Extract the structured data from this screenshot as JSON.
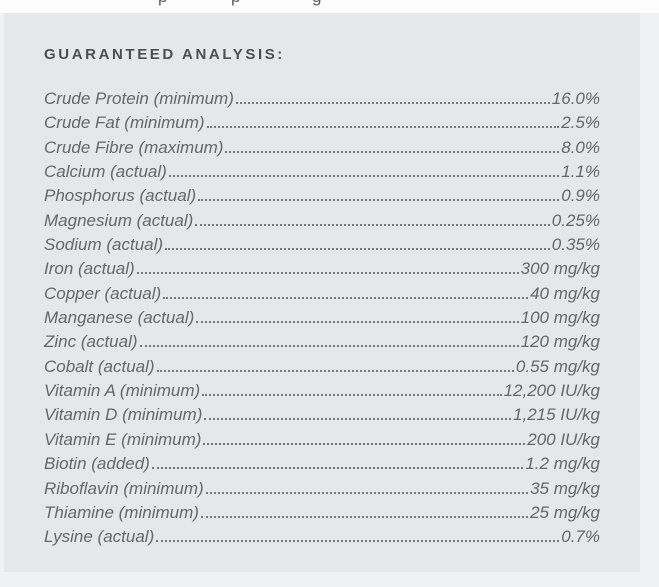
{
  "theme": {
    "page_bg": "#f0f1f2",
    "top_strip_bg": "#fdfdfe",
    "card_bg": "#e6e7e8",
    "heading_color": "#4b4f54",
    "row_text_color": "#64676b",
    "dot_color": "#74777a"
  },
  "clipped_top_line": {
    "glyphs": [
      "p",
      "p",
      "g"
    ]
  },
  "analysis": {
    "heading": "GUARANTEED ANALYSIS:",
    "rows": [
      {
        "label": "Crude Protein (minimum)",
        "value": "16.0%"
      },
      {
        "label": "Crude Fat (minimum)",
        "value": "2.5%"
      },
      {
        "label": "Crude Fibre (maximum)",
        "value": "8.0%"
      },
      {
        "label": "Calcium (actual)",
        "value": "1.1%"
      },
      {
        "label": "Phosphorus (actual)",
        "value": "0.9%"
      },
      {
        "label": "Magnesium (actual)",
        "value": "0.25%"
      },
      {
        "label": "Sodium (actual)",
        "value": "0.35%"
      },
      {
        "label": "Iron (actual)",
        "value": "300 mg/kg"
      },
      {
        "label": "Copper (actual)",
        "value": "40 mg/kg"
      },
      {
        "label": "Manganese (actual)",
        "value": "100 mg/kg"
      },
      {
        "label": "Zinc (actual)",
        "value": "120 mg/kg"
      },
      {
        "label": "Cobalt (actual)",
        "value": "0.55 mg/kg"
      },
      {
        "label": "Vitamin A (minimum)",
        "value": "12,200 IU/kg"
      },
      {
        "label": "Vitamin D (minimum)",
        "value": "1,215 IU/kg"
      },
      {
        "label": "Vitamin E (minimum)",
        "value": "200 IU/kg"
      },
      {
        "label": "Biotin (added)",
        "value": "1.2 mg/kg"
      },
      {
        "label": "Riboflavin (minimum)",
        "value": "35 mg/kg"
      },
      {
        "label": "Thiamine (minimum)",
        "value": "25 mg/kg"
      },
      {
        "label": "Lysine (actual)",
        "value": "0.7%"
      }
    ]
  }
}
